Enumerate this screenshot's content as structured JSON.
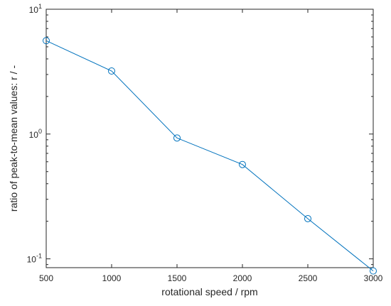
{
  "chart_data": {
    "type": "line",
    "title": "",
    "xlabel": "rotational speed / rpm",
    "ylabel": "ratio of peak-to-mean values: r / -",
    "xlim": [
      500,
      3000
    ],
    "ylim": [
      0.085,
      10
    ],
    "yscale": "log",
    "grid": false,
    "x_ticks": [
      500,
      1000,
      1500,
      2000,
      2500,
      3000
    ],
    "x_tick_labels": [
      "500",
      "1000",
      "1500",
      "2000",
      "2500",
      "3000"
    ],
    "y_ticks": [
      {
        "value": 0.1,
        "base": "10",
        "exp": "-1"
      },
      {
        "value": 1,
        "base": "10",
        "exp": "0"
      },
      {
        "value": 10,
        "base": "10",
        "exp": "1"
      }
    ],
    "series": [
      {
        "color": "#0072BD",
        "marker": "circle",
        "x": [
          500,
          1000,
          1500,
          2000,
          2500,
          3000
        ],
        "y": [
          5.6,
          3.2,
          0.93,
          0.57,
          0.21,
          0.08
        ]
      }
    ]
  }
}
